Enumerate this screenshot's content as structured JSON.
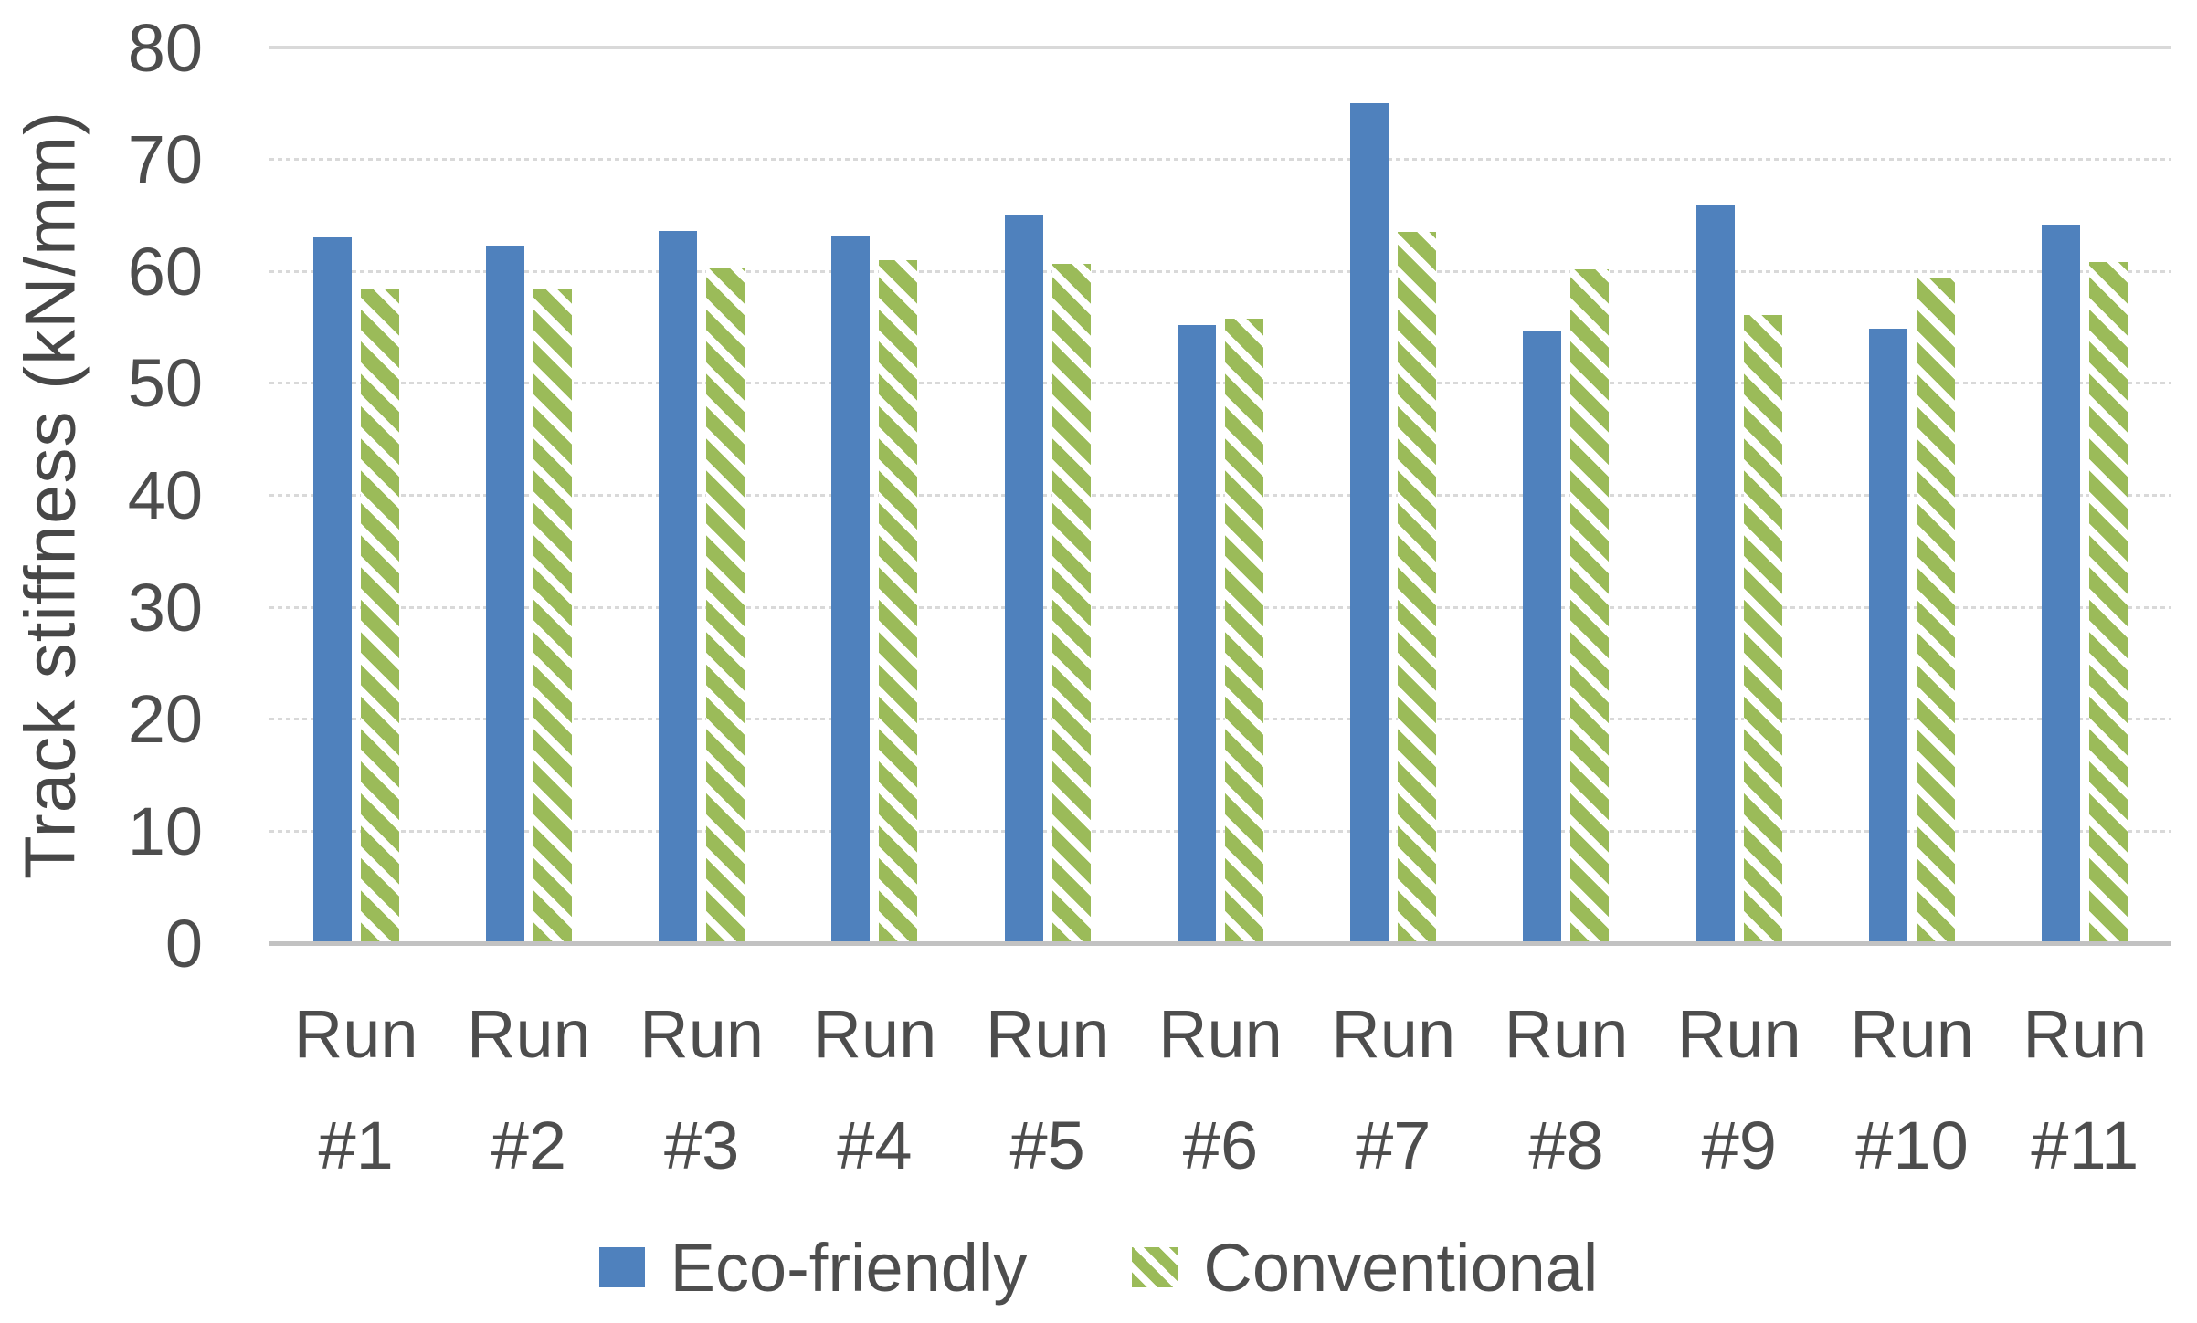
{
  "chart_data": {
    "type": "bar",
    "title": "",
    "ylabel": "Track stiffness (kN/mm)",
    "xlabel": "",
    "ylim": [
      0,
      80
    ],
    "yticks": [
      0,
      10,
      20,
      30,
      40,
      50,
      60,
      70,
      80
    ],
    "grid": "horizontal-dotted",
    "legend_position": "bottom-center",
    "categories": [
      "Run #1",
      "Run #2",
      "Run #3",
      "Run #4",
      "Run #5",
      "Run #6",
      "Run #7",
      "Run #8",
      "Run #9",
      "Run #10",
      "Run #11"
    ],
    "series": [
      {
        "name": "Eco-friendly",
        "color": "#4F81BD",
        "pattern": "solid",
        "values": [
          63.0,
          62.3,
          63.6,
          63.1,
          65.0,
          55.2,
          75.0,
          54.6,
          65.9,
          54.9,
          64.2
        ]
      },
      {
        "name": "Conventional",
        "color": "#9BBB59",
        "pattern": "diagonal-hatch",
        "values": [
          58.5,
          58.5,
          60.3,
          61.0,
          60.7,
          55.8,
          63.5,
          60.2,
          56.1,
          59.4,
          60.8
        ]
      }
    ]
  }
}
